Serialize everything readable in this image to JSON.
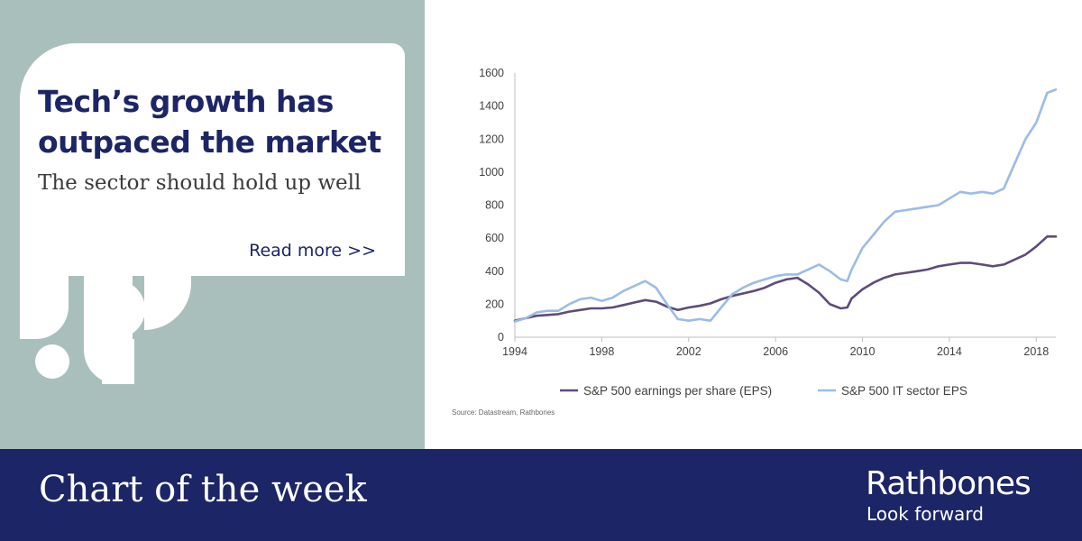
{
  "card": {
    "title": "Tech’s growth has outpaced the market",
    "subtitle": "The sector should hold up well",
    "read_more": "Read more >>"
  },
  "footer": {
    "title": "Chart of the week",
    "brand": "Rathbones",
    "tagline": "Look forward"
  },
  "colors": {
    "panel_bg": "#a9bfbc",
    "navy": "#1c2566",
    "series_eps": "#5e4b7a",
    "series_it": "#9bbce8"
  },
  "chart_data": {
    "type": "line",
    "title": "",
    "xlabel": "",
    "ylabel": "",
    "xlim": [
      1994,
      2018.9
    ],
    "ylim": [
      0,
      1600
    ],
    "yticks": [
      0,
      200,
      400,
      600,
      800,
      1000,
      1200,
      1400,
      1600
    ],
    "xticks": [
      1994,
      1998,
      2002,
      2006,
      2010,
      2014,
      2018
    ],
    "grid": false,
    "legend_position": "bottom",
    "source": "Source: Datastream, Rathbones",
    "series": [
      {
        "name": "S&P 500 earnings per share (EPS)",
        "color": "#5e4b7a",
        "x": [
          1994,
          1994.5,
          1995,
          1995.5,
          1996,
          1996.5,
          1997,
          1997.5,
          1998,
          1998.5,
          1999,
          1999.5,
          2000,
          2000.5,
          2001,
          2001.5,
          2002,
          2002.5,
          2003,
          2003.5,
          2004,
          2004.5,
          2005,
          2005.5,
          2006,
          2006.5,
          2007,
          2007.5,
          2008,
          2008.5,
          2009,
          2009.3,
          2009.5,
          2010,
          2010.5,
          2011,
          2011.5,
          2012,
          2012.5,
          2013,
          2013.5,
          2014,
          2014.5,
          2015,
          2015.5,
          2016,
          2016.5,
          2017,
          2017.5,
          2018,
          2018.5,
          2018.9
        ],
        "y": [
          100,
          115,
          130,
          135,
          140,
          155,
          165,
          175,
          175,
          180,
          195,
          210,
          225,
          215,
          185,
          165,
          180,
          190,
          205,
          230,
          250,
          265,
          280,
          300,
          330,
          350,
          360,
          320,
          270,
          200,
          175,
          180,
          235,
          290,
          330,
          360,
          380,
          390,
          400,
          410,
          430,
          440,
          450,
          450,
          440,
          430,
          440,
          470,
          500,
          550,
          610,
          610
        ]
      },
      {
        "name": "S&P 500 IT sector EPS",
        "color": "#9bbce8",
        "x": [
          1994,
          1994.5,
          1995,
          1995.5,
          1996,
          1996.5,
          1997,
          1997.5,
          1998,
          1998.5,
          1999,
          1999.5,
          2000,
          2000.5,
          2001,
          2001.5,
          2002,
          2002.5,
          2003,
          2003.5,
          2004,
          2004.5,
          2005,
          2005.5,
          2006,
          2006.5,
          2007,
          2007.5,
          2008,
          2008.5,
          2009,
          2009.3,
          2009.5,
          2010,
          2010.5,
          2011,
          2011.5,
          2012,
          2012.5,
          2013,
          2013.5,
          2014,
          2014.5,
          2015,
          2015.5,
          2016,
          2016.5,
          2017,
          2017.5,
          2018,
          2018.5,
          2018.9
        ],
        "y": [
          95,
          115,
          150,
          160,
          160,
          200,
          230,
          240,
          220,
          240,
          280,
          310,
          340,
          300,
          200,
          110,
          100,
          110,
          100,
          180,
          260,
          300,
          330,
          350,
          370,
          380,
          380,
          410,
          440,
          400,
          350,
          340,
          410,
          540,
          620,
          700,
          760,
          770,
          780,
          790,
          800,
          840,
          880,
          870,
          880,
          870,
          900,
          1050,
          1200,
          1300,
          1480,
          1500
        ]
      }
    ]
  }
}
